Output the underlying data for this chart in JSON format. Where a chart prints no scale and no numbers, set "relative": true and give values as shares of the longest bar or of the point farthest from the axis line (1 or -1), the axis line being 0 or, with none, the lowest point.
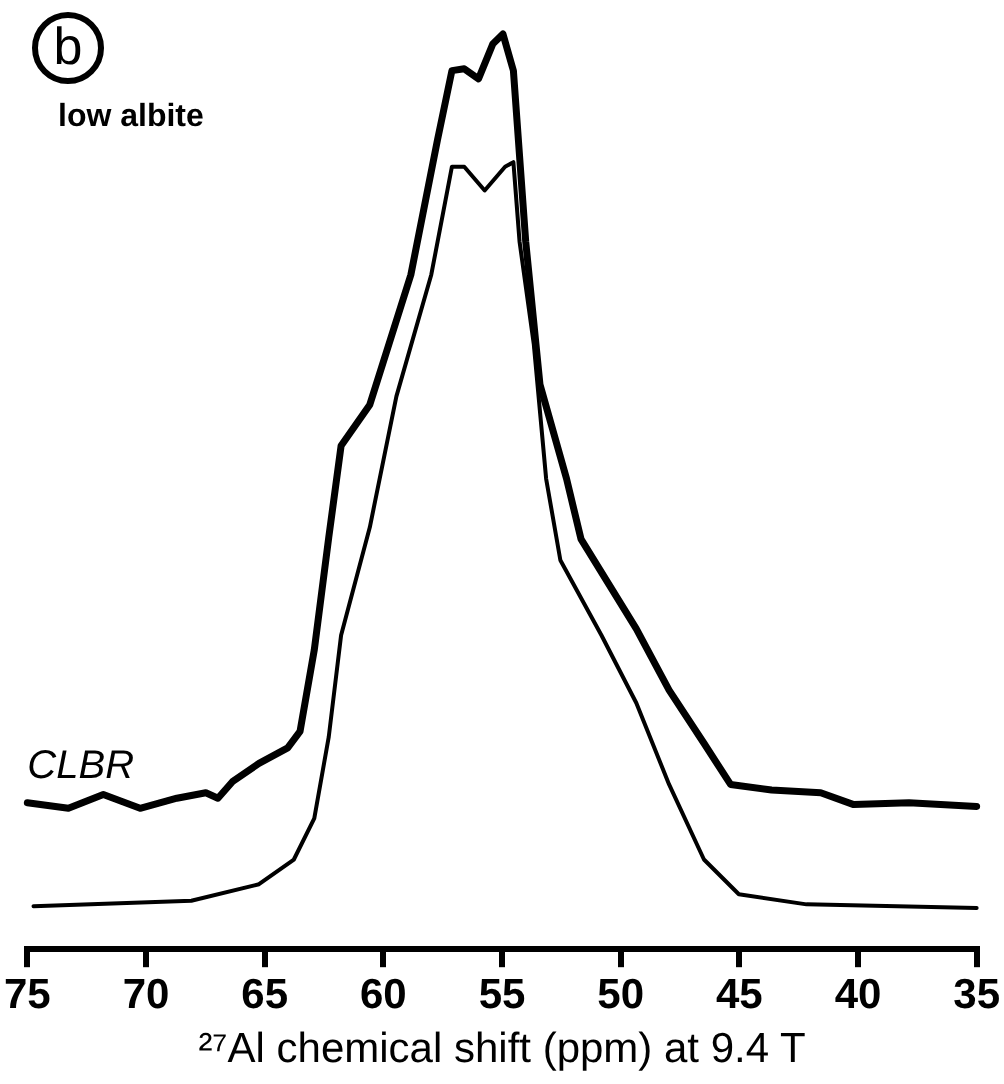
{
  "chart_data": {
    "type": "line",
    "relative": true,
    "xlabel": "²⁷Al chemical shift (ppm) at 9.4 T",
    "annotations": [
      "b",
      "low albite"
    ],
    "xlim": [
      75,
      35
    ],
    "xticks": [
      75,
      70,
      65,
      60,
      55,
      50,
      45,
      40,
      35
    ],
    "legend": false,
    "marker": "none",
    "line_style": "solid",
    "grid": false,
    "series": [
      {
        "name": "CLBR",
        "color": "#000000",
        "x": [
          75,
          73.27,
          71.8,
          70.25,
          68.7,
          67.48,
          66.97,
          66.36,
          65.24,
          64.03,
          63.51,
          62.91,
          62.3,
          61.78,
          60.57,
          58.84,
          57.72,
          57.11,
          56.59,
          55.99,
          55.39,
          54.96,
          54.52,
          54.0,
          53.4,
          52.28,
          51.67,
          49.34,
          47.96,
          46.49,
          45.37,
          43.64,
          41.57,
          40.18,
          37.85,
          35
        ],
        "values": [
          0.16,
          0.154,
          0.169,
          0.154,
          0.165,
          0.171,
          0.165,
          0.183,
          0.203,
          0.22,
          0.238,
          0.327,
          0.45,
          0.55,
          0.595,
          0.737,
          0.884,
          0.96,
          0.962,
          0.951,
          0.989,
          1,
          0.96,
          0.773,
          0.617,
          0.514,
          0.448,
          0.35,
          0.283,
          0.225,
          0.18,
          0.174,
          0.171,
          0.158,
          0.16,
          0.156
        ]
      },
      {
        "color": "#000000",
        "x": [
          74.74,
          68.09,
          65.24,
          63.77,
          62.91,
          62.3,
          61.78,
          60.57,
          59.45,
          57.98,
          57.11,
          56.59,
          55.73,
          54.87,
          54.52,
          54.26,
          53.66,
          53.14,
          52.54,
          50.81,
          49.34,
          47.96,
          46.49,
          45.02,
          42.17,
          35
        ],
        "values": [
          0.047,
          0.053,
          0.071,
          0.098,
          0.143,
          0.232,
          0.343,
          0.461,
          0.604,
          0.737,
          0.855,
          0.855,
          0.829,
          0.855,
          0.86,
          0.773,
          0.661,
          0.514,
          0.425,
          0.343,
          0.269,
          0.18,
          0.098,
          0.06,
          0.049,
          0.045
        ]
      }
    ]
  }
}
